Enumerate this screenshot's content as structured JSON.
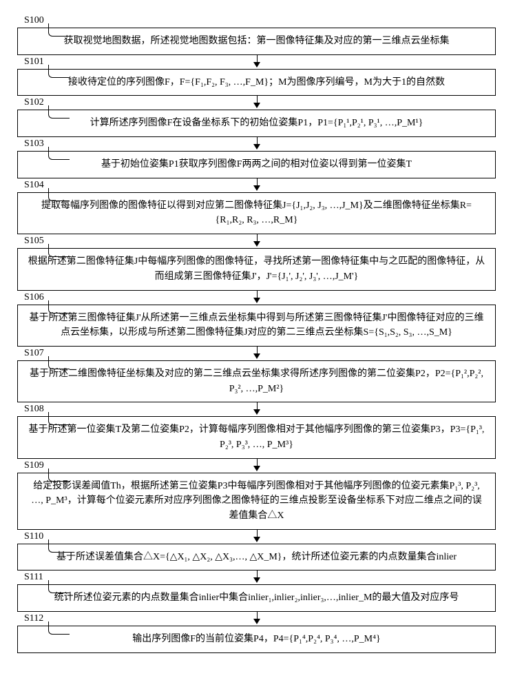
{
  "diagram": {
    "type": "flowchart",
    "background_color": "#ffffff",
    "border_color": "#000000",
    "text_color": "#000000",
    "font_family": "SimSun",
    "box_font_size": 14,
    "label_font_size": 14,
    "steps": [
      {
        "id": "S100",
        "text": "获取视觉地图数据，所述视觉地图数据包括：第一图像特征集及对应的第一三维点云坐标集"
      },
      {
        "id": "S101",
        "text": "接收待定位的序列图像F，F={F₁,F₂, F₃, …,F_M}；M为图像序列编号，M为大于1的自然数"
      },
      {
        "id": "S102",
        "text": "计算所述序列图像F在设备坐标系下的初始位姿集P1，P1={P₁¹,P₂¹, P₃¹, …,P_M¹}"
      },
      {
        "id": "S103",
        "text": "基于初始位姿集P1获取序列图像F两两之间的相对位姿以得到第一位姿集T"
      },
      {
        "id": "S104",
        "text": "提取每幅序列图像的图像特征以得到对应第二图像特征集J={J₁,J₂, J₃, …,J_M}及二维图像特征坐标集R={R₁,R₂, R₃, …,R_M}"
      },
      {
        "id": "S105",
        "text": "根据所述第二图像特征集J中每幅序列图像的图像特征，寻找所述第一图像特征集中与之匹配的图像特征，从而组成第三图像特征集J'，J'={J₁', J₂', J₃', …,J_M'}"
      },
      {
        "id": "S106",
        "text": "基于所述第三图像特征集J'从所述第一三维点云坐标集中得到与所述第三图像特征集J'中图像特征对应的三维点云坐标集，以形成与所述第二图像特征集J对应的第二三维点云坐标集S={S₁,S₂, S₃, …,S_M}"
      },
      {
        "id": "S107",
        "text": "基于所述二维图像特征坐标集及对应的第二三维点云坐标集求得所述序列图像的第二位姿集P2，P2={P₁²,P₂², P₃², …,P_M²}"
      },
      {
        "id": "S108",
        "text": "基于所述第一位姿集T及第二位姿集P2，计算每幅序列图像相对于其他幅序列图像的第三位姿集P3，P3={P₁³, P₂³, P₃³, …, P_M³}"
      },
      {
        "id": "S109",
        "text": "给定投影误差阈值Th，根据所述第三位姿集P3中每幅序列图像相对于其他幅序列图像的位姿元素集P₁³, P₂³, …, P_M³，计算每个位姿元素所对应序列图像之图像特征的三维点投影至设备坐标系下对应二维点之间的误差值集合△X"
      },
      {
        "id": "S110",
        "text": "基于所述误差值集合△X={△X₁, △X₂, △X₃,…, △X_M}，统计所述位姿元素的内点数量集合inlier"
      },
      {
        "id": "S111",
        "text": "统计所述位姿元素的内点数量集合inlier中集合inlier₁,inlier₂,inlier₃,…,inlier_M的最大值及对应序号"
      },
      {
        "id": "S112",
        "text": "输出序列图像F的当前位姿集P4，P4={P₁⁴,P₂⁴, P₃⁴, …,P_M⁴}"
      }
    ]
  }
}
